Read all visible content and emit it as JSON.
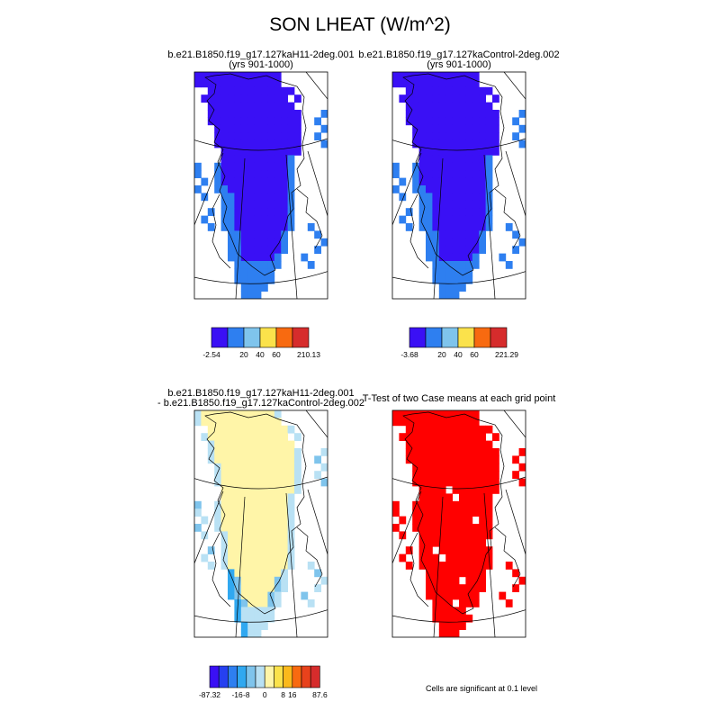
{
  "title": "SON LHEAT (W/m^2)",
  "chart_data": [
    {
      "type": "heatmap",
      "id": "case1",
      "title_line1": "b.e21.B1850.f19_g17.127kaH11-2deg.001",
      "title_line2": "(yrs 901-1000)",
      "colorbar": {
        "colors": [
          "#3a10f5",
          "#2e7ff0",
          "#7fc4ec",
          "#fbe24b",
          "#f86a10",
          "#d62c2c"
        ],
        "labels": [
          "-2.54",
          "20",
          "40",
          "60",
          "210.13"
        ],
        "label_positions": [
          0,
          2,
          3,
          4,
          6
        ]
      }
    },
    {
      "type": "heatmap",
      "id": "case2",
      "title_line1": "b.e21.B1850.f19_g17.127kaControl-2deg.002",
      "title_line2": "(yrs 901-1000)",
      "colorbar": {
        "colors": [
          "#3a10f5",
          "#2e7ff0",
          "#7fc4ec",
          "#fbe24b",
          "#f86a10",
          "#d62c2c"
        ],
        "labels": [
          "-3.68",
          "20",
          "40",
          "60",
          "221.29"
        ],
        "label_positions": [
          0,
          2,
          3,
          4,
          6
        ]
      }
    },
    {
      "type": "heatmap",
      "id": "diff",
      "title_line1": "b.e21.B1850.f19_g17.127kaH11-2deg.001",
      "title_line2": "- b.e21.B1850.f19_g17.127kaControl-2deg.002",
      "colorbar": {
        "colors": [
          "#3a10f5",
          "#2640f0",
          "#2e7ff0",
          "#30a8f0",
          "#7fc4ec",
          "#b9e1f4",
          "#fff5a8",
          "#fbe24b",
          "#fbb91c",
          "#f86a10",
          "#e8421c",
          "#d62c2c"
        ],
        "labels": [
          "-87.32",
          "-16",
          "-8",
          "0",
          "8",
          "16",
          "87.6"
        ],
        "label_positions": [
          0,
          3,
          4,
          6,
          8,
          9,
          12
        ]
      }
    },
    {
      "type": "heatmap",
      "id": "ttest",
      "title_line1": "T-Test of two Case means at each grid point",
      "title_line2": "",
      "footnote": "Cells are significant at 0.1 level"
    }
  ]
}
